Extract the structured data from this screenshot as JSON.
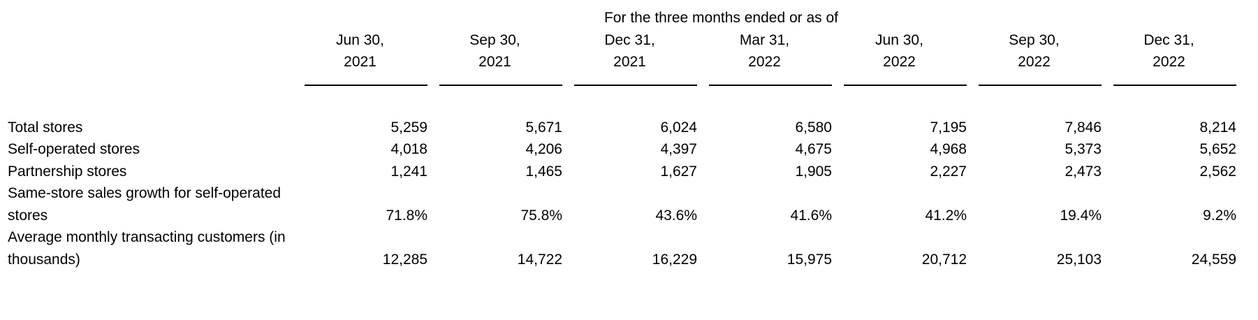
{
  "table": {
    "group_header": "For the three months ended or as of",
    "columns": [
      {
        "line1": "Jun 30,",
        "line2": "2021"
      },
      {
        "line1": "Sep 30,",
        "line2": "2021"
      },
      {
        "line1": "Dec 31,",
        "line2": "2021"
      },
      {
        "line1": "Mar 31,",
        "line2": "2022"
      },
      {
        "line1": "Jun 30,",
        "line2": "2022"
      },
      {
        "line1": "Sep 30,",
        "line2": "2022"
      },
      {
        "line1": "Dec 31,",
        "line2": "2022"
      }
    ],
    "rows": [
      {
        "label_lines": [
          "Total stores"
        ],
        "values": [
          "5,259",
          "5,671",
          "6,024",
          "6,580",
          "7,195",
          "7,846",
          "8,214"
        ]
      },
      {
        "label_lines": [
          "Self-operated stores"
        ],
        "values": [
          "4,018",
          "4,206",
          "4,397",
          "4,675",
          "4,968",
          "5,373",
          "5,652"
        ]
      },
      {
        "label_lines": [
          "Partnership stores"
        ],
        "values": [
          "1,241",
          "1,465",
          "1,627",
          "1,905",
          "2,227",
          "2,473",
          "2,562"
        ]
      },
      {
        "label_lines": [
          "Same-store sales growth for self-operated",
          "stores"
        ],
        "values": [
          "71.8%",
          "75.8%",
          "43.6%",
          "41.6%",
          "41.2%",
          "19.4%",
          "9.2%"
        ]
      },
      {
        "label_lines": [
          "Average monthly transacting customers (in",
          "thousands)"
        ],
        "values": [
          "12,285",
          "14,722",
          "16,229",
          "15,975",
          "20,712",
          "25,103",
          "24,559"
        ]
      }
    ],
    "colors": {
      "text": "#000000",
      "rule": "#000000",
      "background": "#ffffff"
    }
  }
}
